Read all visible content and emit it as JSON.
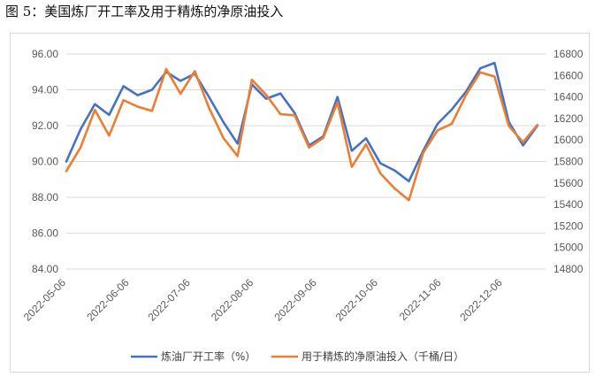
{
  "caption": "图 5：美国炼厂开工率及用于精炼的净原油投入",
  "colors": {
    "series_0": "#4472c4",
    "series_1": "#ed7d31",
    "grid": "#d9d9d9"
  },
  "chart_data": {
    "type": "line",
    "title": "",
    "x": [
      "2022-05-06",
      "2022-05-13",
      "2022-05-20",
      "2022-05-27",
      "2022-06-03",
      "2022-06-10",
      "2022-06-17",
      "2022-06-24",
      "2022-07-01",
      "2022-07-08",
      "2022-07-15",
      "2022-07-22",
      "2022-07-29",
      "2022-08-05",
      "2022-08-12",
      "2022-08-19",
      "2022-08-26",
      "2022-09-02",
      "2022-09-09",
      "2022-09-16",
      "2022-09-23",
      "2022-09-30",
      "2022-10-07",
      "2022-10-14",
      "2022-10-21",
      "2022-10-28",
      "2022-11-04",
      "2022-11-11",
      "2022-11-18",
      "2022-11-25",
      "2022-12-02",
      "2022-12-09",
      "2022-12-16",
      "2022-12-23"
    ],
    "x_ticks": [
      "2022-05-06",
      "2022-06-06",
      "2022-07-06",
      "2022-08-06",
      "2022-09-06",
      "2022-10-06",
      "2022-11-06",
      "2022-12-06"
    ],
    "y_left": {
      "ylim": [
        84,
        96
      ],
      "ticks": [
        "84.00",
        "86.00",
        "88.00",
        "90.00",
        "92.00",
        "94.00",
        "96.00"
      ]
    },
    "y_right": {
      "ylim": [
        14800,
        16800
      ],
      "ticks": [
        "14800",
        "15000",
        "15200",
        "15400",
        "15600",
        "15800",
        "16000",
        "16200",
        "16400",
        "16600",
        "16800"
      ]
    },
    "series": [
      {
        "name": "炼油厂开工率（%）",
        "axis": "left",
        "values": [
          90.0,
          91.8,
          93.2,
          92.6,
          94.2,
          93.7,
          94.0,
          95.0,
          94.5,
          94.9,
          93.6,
          92.2,
          91.0,
          94.3,
          93.5,
          93.8,
          92.7,
          90.9,
          91.4,
          93.6,
          90.6,
          91.3,
          89.9,
          89.5,
          88.9,
          90.6,
          92.1,
          92.9,
          93.9,
          95.2,
          95.5,
          92.2,
          90.9,
          92.0
        ]
      },
      {
        "name": "用于精炼的净原油投入（千桶/日）",
        "axis": "right",
        "values": [
          15710,
          15930,
          16280,
          16040,
          16370,
          16310,
          16270,
          16660,
          16430,
          16640,
          16300,
          16020,
          15850,
          16560,
          16420,
          16240,
          16230,
          15930,
          16020,
          16350,
          15750,
          15960,
          15690,
          15550,
          15440,
          15880,
          16090,
          16150,
          16420,
          16630,
          16590,
          16130,
          15980,
          16140
        ]
      }
    ],
    "legend_position": "bottom",
    "grid": true
  }
}
